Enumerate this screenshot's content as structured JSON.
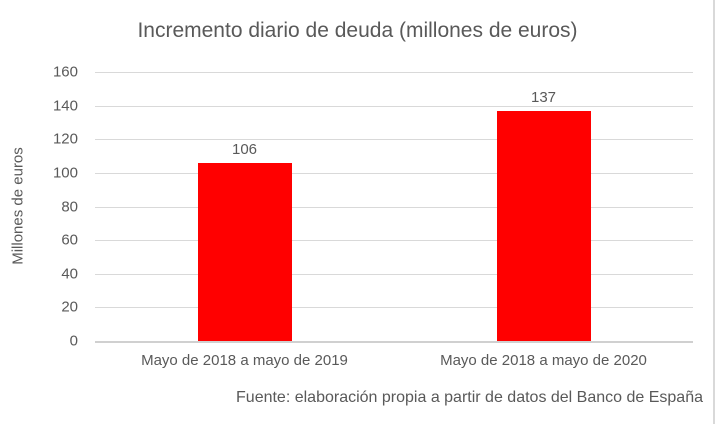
{
  "colors": {
    "bar": "#ff0000",
    "text": "#595959",
    "gridline": "#d9d9d9"
  },
  "chart_data": {
    "type": "bar",
    "title": "Incremento diario de deuda (millones de euros)",
    "categories": [
      "Mayo de 2018 a mayo de 2019",
      "Mayo de 2018 a mayo de 2020"
    ],
    "values": [
      106,
      137
    ],
    "data_labels": [
      "106",
      "137"
    ],
    "xlabel": "",
    "ylabel": "Millones de euros",
    "ylim": [
      0,
      160
    ],
    "yticks": [
      0,
      20,
      40,
      60,
      80,
      100,
      120,
      140,
      160
    ],
    "grid": true,
    "legend": false,
    "bar_color": "#ff0000",
    "source": "Fuente: elaboración propia a partir de datos del Banco de España"
  }
}
